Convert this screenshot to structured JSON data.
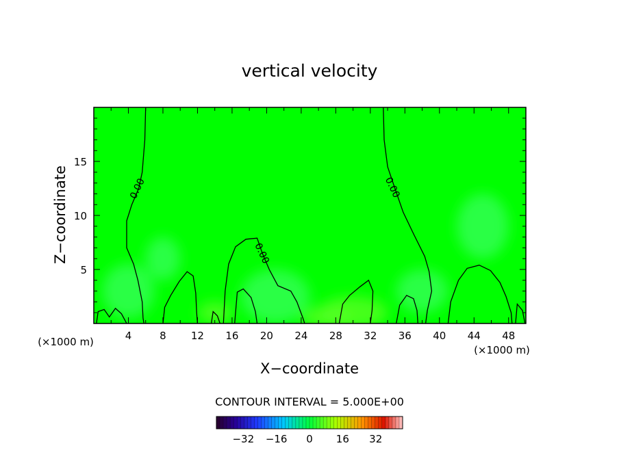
{
  "chart_data": {
    "type": "heatmap",
    "title": "vertical velocity",
    "xlabel": "X−coordinate",
    "ylabel": "Z−coordinate",
    "x_unit_left": "(×1000 m)",
    "x_unit_right": "(×1000 m)",
    "xlim": [
      0,
      50
    ],
    "ylim": [
      0,
      20
    ],
    "x_ticks": [
      4,
      8,
      12,
      16,
      20,
      24,
      28,
      32,
      36,
      40,
      44,
      48
    ],
    "y_ticks": [
      5,
      10,
      15
    ],
    "contour_interval_text": "CONTOUR INTERVAL = 5.000E+00",
    "contour_labels": [
      {
        "text": "0.00",
        "x": 5.0,
        "y": 12.5
      },
      {
        "text": "0.00",
        "x": 19.5,
        "y": 6.5
      },
      {
        "text": "0.00",
        "x": 34.6,
        "y": 12.6
      }
    ],
    "zero_contours": [
      [
        [
          6.0,
          20
        ],
        [
          5.9,
          17
        ],
        [
          5.6,
          14
        ],
        [
          5.2,
          12.5
        ],
        [
          4.4,
          11
        ],
        [
          3.8,
          9.5
        ],
        [
          3.8,
          7.0
        ],
        [
          4.6,
          5.5
        ],
        [
          5.1,
          4.0
        ],
        [
          5.6,
          2.0
        ],
        [
          5.7,
          0.5
        ],
        [
          5.8,
          0
        ]
      ],
      [
        [
          15.0,
          0
        ],
        [
          15.2,
          3
        ],
        [
          15.6,
          5.5
        ],
        [
          16.4,
          7.1
        ],
        [
          17.6,
          7.8
        ],
        [
          18.9,
          7.9
        ],
        [
          19.5,
          6.5
        ],
        [
          20.3,
          5.0
        ],
        [
          21.3,
          3.5
        ],
        [
          22.8,
          3.0
        ],
        [
          23.5,
          2.0
        ],
        [
          24.2,
          0.5
        ],
        [
          24.4,
          0
        ]
      ],
      [
        [
          33.5,
          20
        ],
        [
          33.6,
          17
        ],
        [
          34.0,
          14.5
        ],
        [
          34.8,
          12.6
        ],
        [
          35.8,
          10.3
        ],
        [
          37.0,
          8.3
        ],
        [
          38.3,
          6.2
        ],
        [
          38.8,
          4.8
        ],
        [
          39.1,
          3.0
        ],
        [
          38.6,
          1.2
        ],
        [
          38.4,
          0
        ]
      ],
      [
        [
          41.0,
          0
        ],
        [
          41.3,
          2.0
        ],
        [
          42.2,
          4.0
        ],
        [
          43.2,
          5.1
        ],
        [
          44.6,
          5.4
        ],
        [
          45.9,
          4.9
        ],
        [
          47.0,
          3.8
        ],
        [
          47.7,
          2.5
        ],
        [
          48.3,
          1.0
        ],
        [
          48.4,
          0
        ]
      ],
      [
        [
          8.0,
          0
        ],
        [
          8.2,
          1.5
        ],
        [
          8.9,
          2.6
        ],
        [
          9.9,
          3.9
        ],
        [
          10.8,
          4.8
        ],
        [
          11.5,
          4.4
        ],
        [
          11.8,
          2.8
        ],
        [
          11.9,
          1.0
        ],
        [
          12.0,
          0
        ]
      ],
      [
        [
          28.4,
          0
        ],
        [
          28.8,
          1.8
        ],
        [
          29.6,
          2.6
        ],
        [
          30.8,
          3.4
        ],
        [
          31.8,
          4.0
        ],
        [
          32.3,
          3.0
        ],
        [
          32.2,
          1.2
        ],
        [
          32.0,
          0
        ]
      ],
      [
        [
          35.0,
          0
        ],
        [
          35.4,
          1.7
        ],
        [
          36.2,
          2.6
        ],
        [
          37.0,
          2.3
        ],
        [
          37.4,
          1.2
        ],
        [
          37.5,
          0
        ]
      ],
      [
        [
          0.3,
          0
        ],
        [
          0.5,
          1.1
        ],
        [
          1.2,
          1.3
        ],
        [
          1.8,
          0.6
        ],
        [
          2.5,
          1.4
        ],
        [
          3.2,
          0.9
        ],
        [
          3.8,
          0
        ]
      ],
      [
        [
          13.6,
          0
        ],
        [
          13.8,
          1.1
        ],
        [
          14.3,
          0.7
        ],
        [
          14.6,
          0
        ]
      ],
      [
        [
          16.3,
          0
        ],
        [
          16.6,
          2.9
        ],
        [
          17.3,
          3.2
        ],
        [
          18.2,
          2.4
        ],
        [
          18.7,
          1.1
        ],
        [
          18.9,
          0
        ]
      ],
      [
        [
          48.8,
          0
        ],
        [
          49.0,
          1.8
        ],
        [
          49.6,
          1.2
        ],
        [
          49.9,
          0
        ]
      ]
    ],
    "colorbar": {
      "tick_labels": [
        "−32",
        "−16",
        "0",
        "16",
        "32"
      ],
      "tick_values": [
        -32,
        -16,
        0,
        16,
        32
      ],
      "range": [
        -45,
        45
      ]
    },
    "colors": {
      "field_base": "#00ff00",
      "field_light": "#33ff55",
      "field_warm": "#55ff22"
    }
  }
}
